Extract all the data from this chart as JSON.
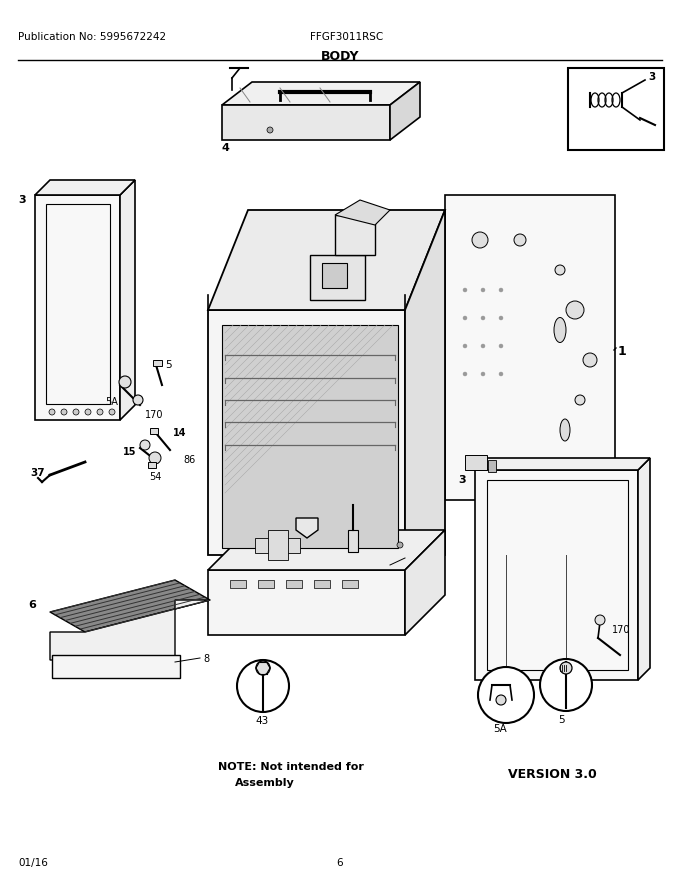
{
  "title": "BODY",
  "pub_no": "Publication No: 5995672242",
  "model": "FFGF3011RSC",
  "date": "01/16",
  "page": "6",
  "bg_color": "#ffffff",
  "line_color": "#000000"
}
